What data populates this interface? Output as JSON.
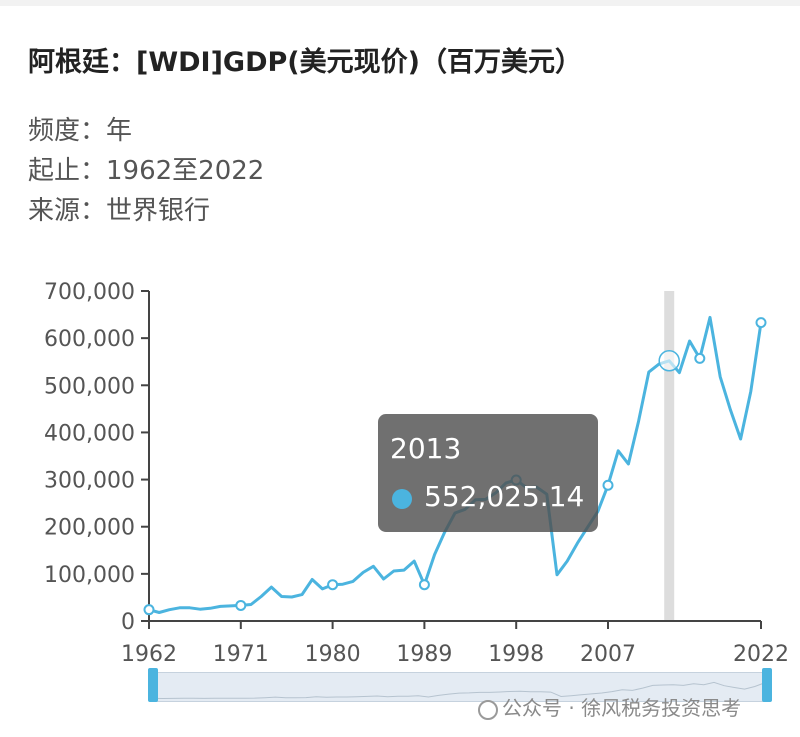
{
  "title": "阿根廷：[WDI]GDP(美元现价)（百万美元）",
  "meta": [
    {
      "label": "频度：",
      "value": "年"
    },
    {
      "label": "起止：",
      "value": "1962至2022"
    },
    {
      "label": "来源：",
      "value": "世界银行"
    }
  ],
  "tooltip": {
    "year": "2013",
    "value": "552,025.14"
  },
  "watermark": {
    "channel": "公众号 ·",
    "name": "徐风税务投资思考"
  },
  "colors": {
    "line": "#4bb4df",
    "tooltip_bg": "#505050",
    "marker_band": "#dddddd"
  },
  "chart_data": {
    "type": "line",
    "title": "阿根廷：[WDI]GDP(美元现价)（百万美元）",
    "xlabel": "",
    "ylabel": "",
    "xlim": [
      1962,
      2022
    ],
    "ylim": [
      0,
      700000
    ],
    "yticks": [
      0,
      100000,
      200000,
      300000,
      400000,
      500000,
      600000,
      700000
    ],
    "ytick_labels": [
      "0",
      "100,000",
      "200,000",
      "300,000",
      "400,000",
      "500,000",
      "600,000",
      "700,000"
    ],
    "xticks": [
      1962,
      1971,
      1980,
      1989,
      1998,
      2007,
      2022
    ],
    "xtick_labels": [
      "1962",
      "1971",
      "1980",
      "1989",
      "1998",
      "2007",
      "2022"
    ],
    "highlight_year": 2013,
    "grid": false,
    "series": [
      {
        "values": [
          [
            1962,
            24000
          ],
          [
            1963,
            18000
          ],
          [
            1964,
            24000
          ],
          [
            1965,
            28000
          ],
          [
            1966,
            28000
          ],
          [
            1967,
            25000
          ],
          [
            1968,
            27000
          ],
          [
            1969,
            31000
          ],
          [
            1970,
            32000
          ],
          [
            1971,
            33000
          ],
          [
            1972,
            35000
          ],
          [
            1973,
            52000
          ],
          [
            1974,
            72000
          ],
          [
            1975,
            52000
          ],
          [
            1976,
            51000
          ],
          [
            1977,
            56000
          ],
          [
            1978,
            88000
          ],
          [
            1979,
            68000
          ],
          [
            1980,
            77000
          ],
          [
            1981,
            78000
          ],
          [
            1982,
            84000
          ],
          [
            1983,
            103000
          ],
          [
            1984,
            116000
          ],
          [
            1985,
            89000
          ],
          [
            1986,
            106000
          ],
          [
            1987,
            108000
          ],
          [
            1988,
            127000
          ],
          [
            1989,
            77000
          ],
          [
            1990,
            141000
          ],
          [
            1991,
            189000
          ],
          [
            1992,
            229000
          ],
          [
            1993,
            237000
          ],
          [
            1994,
            257000
          ],
          [
            1995,
            258000
          ],
          [
            1996,
            272000
          ],
          [
            1997,
            293000
          ],
          [
            1998,
            299000
          ],
          [
            1999,
            283000
          ],
          [
            2000,
            284000
          ],
          [
            2001,
            269000
          ],
          [
            2002,
            98000
          ],
          [
            2003,
            127000
          ],
          [
            2004,
            165000
          ],
          [
            2005,
            199000
          ],
          [
            2006,
            232000
          ],
          [
            2007,
            288000
          ],
          [
            2008,
            361000
          ],
          [
            2009,
            333000
          ],
          [
            2010,
            424000
          ],
          [
            2011,
            528000
          ],
          [
            2012,
            545000
          ],
          [
            2013,
            552025
          ],
          [
            2014,
            527000
          ],
          [
            2015,
            594000
          ],
          [
            2016,
            557000
          ],
          [
            2017,
            644000
          ],
          [
            2018,
            518000
          ],
          [
            2019,
            448000
          ],
          [
            2020,
            386000
          ],
          [
            2021,
            487000
          ],
          [
            2022,
            633000
          ]
        ],
        "markers": [
          1962,
          1971,
          1980,
          1989,
          1998,
          2007,
          2016,
          2022
        ]
      }
    ]
  }
}
